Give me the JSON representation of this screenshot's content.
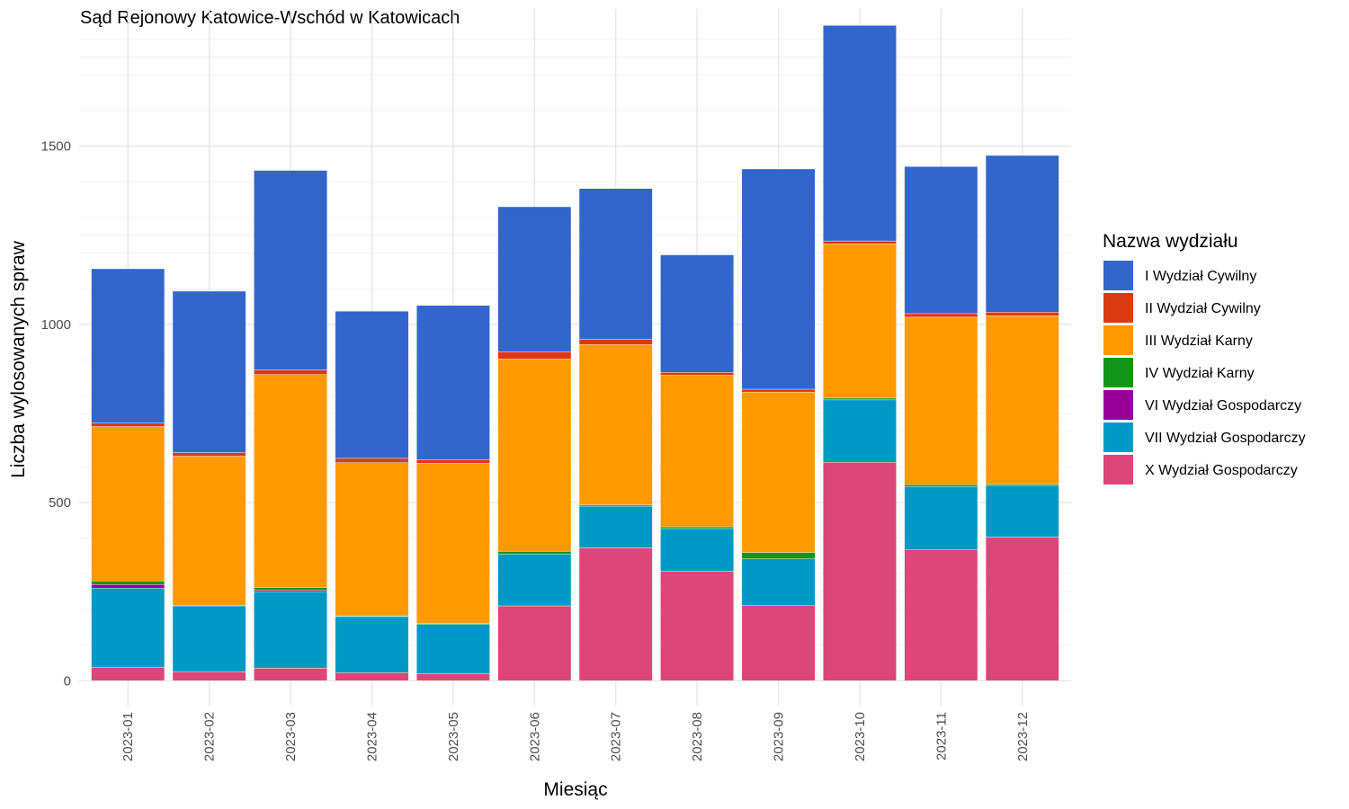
{
  "chart_data": {
    "type": "bar",
    "stacked": true,
    "title": "Sąd Rejonowy Katowice-Wschód w Katowicach",
    "xlabel": "Miesiąc",
    "ylabel": "Liczba wylosowanych spraw",
    "ylim": [
      -70,
      1885
    ],
    "yticks": [
      0,
      500,
      1000,
      1500
    ],
    "grid": true,
    "legend_title": "Nazwa wydziału",
    "legend_position": "right",
    "categories": [
      "2023-01",
      "2023-02",
      "2023-03",
      "2023-04",
      "2023-05",
      "2023-06",
      "2023-07",
      "2023-08",
      "2023-09",
      "2023-10",
      "2023-11",
      "2023-12"
    ],
    "series": [
      {
        "name": "X Wydział Gospodarczy",
        "color": "#dc4678",
        "values": [
          38,
          25,
          35,
          23,
          20,
          210,
          373,
          307,
          212,
          613,
          367,
          403
        ]
      },
      {
        "name": "VII Wydział Gospodarczy",
        "color": "#0099c6",
        "values": [
          222,
          185,
          215,
          157,
          138,
          145,
          117,
          120,
          130,
          175,
          178,
          145
        ]
      },
      {
        "name": "VI Wydział Gospodarczy",
        "color": "#990099",
        "values": [
          10,
          0,
          4,
          0,
          0,
          0,
          0,
          0,
          0,
          0,
          0,
          0
        ]
      },
      {
        "name": "IV Wydział Karny",
        "color": "#109618",
        "values": [
          10,
          2,
          7,
          2,
          2,
          8,
          3,
          5,
          18,
          5,
          5,
          3
        ]
      },
      {
        "name": "III Wydział Karny",
        "color": "#ff9900",
        "values": [
          433,
          418,
          598,
          430,
          450,
          540,
          450,
          425,
          450,
          433,
          470,
          473
        ]
      },
      {
        "name": "II Wydział Cywilny",
        "color": "#dc3912",
        "values": [
          10,
          10,
          13,
          12,
          10,
          20,
          15,
          8,
          8,
          8,
          10,
          10
        ]
      },
      {
        "name": "I Wydział Cywilny",
        "color": "#3366cc",
        "values": [
          433,
          453,
          560,
          413,
          433,
          407,
          423,
          330,
          618,
          605,
          413,
          440
        ]
      }
    ],
    "legend_order": [
      "I Wydział Cywilny",
      "II Wydział Cywilny",
      "III Wydział Karny",
      "IV Wydział Karny",
      "VI Wydział Gospodarczy",
      "VII Wydział Gospodarczy",
      "X Wydział Gospodarczy"
    ]
  }
}
